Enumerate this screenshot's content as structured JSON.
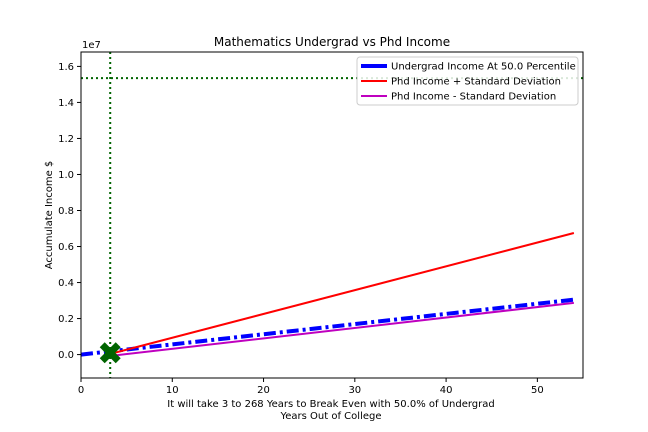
{
  "chart_data": {
    "type": "line",
    "title": "Mathematics Undergrad vs Phd Income",
    "xlabel": "It will take 3 to 268 Years to Break Even with 50.0% of Undergrad",
    "xlabel2": "Years Out of College",
    "ylabel": "Accumulate Income $",
    "y_offset_label": "1e7",
    "xlim": [
      0,
      55
    ],
    "ylim": [
      -1300000,
      16800000
    ],
    "x_ticks": [
      0,
      10,
      20,
      30,
      40,
      50
    ],
    "x_tick_labels": [
      "0",
      "10",
      "20",
      "30",
      "40",
      "50"
    ],
    "y_ticks": [
      0,
      2000000,
      4000000,
      6000000,
      8000000,
      10000000,
      12000000,
      14000000,
      16000000
    ],
    "y_tick_labels": [
      "0.0",
      "0.2",
      "0.4",
      "0.6",
      "0.8",
      "1.0",
      "1.2",
      "1.4",
      "1.6"
    ],
    "grid": false,
    "legend_position": "top-right",
    "series": [
      {
        "name": "Undergrad Income At 50.0 Percentile",
        "color": "#0000ff",
        "style": "dashdot",
        "width": "thick",
        "x": [
          0,
          54
        ],
        "y": [
          0,
          3050000
        ]
      },
      {
        "name": "Phd Income + Standard Deviation",
        "color": "#ff0000",
        "style": "solid",
        "width": "normal",
        "x": [
          3.3,
          54
        ],
        "y": [
          50000,
          6750000
        ]
      },
      {
        "name": "Phd Income - Standard Deviation",
        "color": "#bf00bf",
        "style": "solid",
        "width": "normal",
        "x": [
          3.3,
          54
        ],
        "y": [
          -70000,
          2870000
        ]
      }
    ],
    "reference_lines": [
      {
        "orientation": "horizontal",
        "y": 15350000,
        "color": "#006400",
        "style": "dotted"
      },
      {
        "orientation": "vertical",
        "x": 3.2,
        "color": "#006400",
        "style": "dotted"
      }
    ],
    "markers": [
      {
        "x": 3.2,
        "y": 100000,
        "color": "#006400",
        "shape": "X"
      }
    ]
  }
}
